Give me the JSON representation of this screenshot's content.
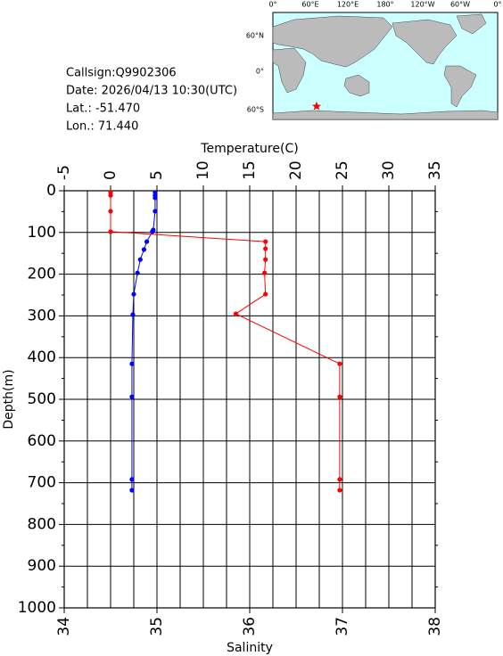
{
  "chart_data": {
    "type": "line",
    "info": [
      "Callsign:Q9902306",
      "Date:  2026/04/13 10:30(UTC)",
      "Lat.:  -51.470",
      "Lon.:  71.440"
    ],
    "map": {
      "lon_labels": [
        "0°",
        "60°E",
        "120°E",
        "180°",
        "120°W",
        "60°W",
        "0°"
      ],
      "lat_labels": [
        "60°N",
        "0°",
        "60°S"
      ]
    },
    "xlabel": "Temperature(C)",
    "x2label": "Salinity",
    "ylabel": "Depth(m)",
    "xlim": [
      -5,
      35
    ],
    "xticks": [
      -5,
      0,
      5,
      10,
      15,
      20,
      25,
      30,
      35
    ],
    "x2lim": [
      34,
      38
    ],
    "x2ticks": [
      34,
      35,
      36,
      37,
      38
    ],
    "ylim": [
      0,
      1000
    ],
    "yticks": [
      0,
      100,
      200,
      300,
      400,
      500,
      600,
      700,
      800,
      900,
      1000
    ],
    "yinvert": true,
    "grid": true,
    "series": [
      {
        "name": "Temperature",
        "color": "#0000ff",
        "axis": "x",
        "depth": [
          4,
          11,
          17,
          49,
          94,
          98,
          122,
          141,
          165,
          197,
          248,
          297,
          415,
          494,
          692,
          718
        ],
        "values": [
          4.8,
          4.8,
          4.8,
          4.8,
          4.6,
          4.5,
          3.9,
          3.6,
          3.2,
          2.9,
          2.5,
          2.4,
          2.3,
          2.3,
          2.3,
          2.3
        ]
      },
      {
        "name": "Salinity",
        "color": "#ff0000",
        "axis": "x2",
        "depth": [
          4,
          11,
          49,
          98,
          122,
          139,
          165,
          197,
          248,
          295,
          415,
          494,
          692,
          718
        ],
        "values": [
          34.5,
          34.5,
          34.5,
          34.5,
          36.17,
          36.17,
          36.17,
          36.16,
          36.17,
          35.85,
          36.97,
          36.97,
          36.97,
          36.97
        ]
      }
    ]
  }
}
